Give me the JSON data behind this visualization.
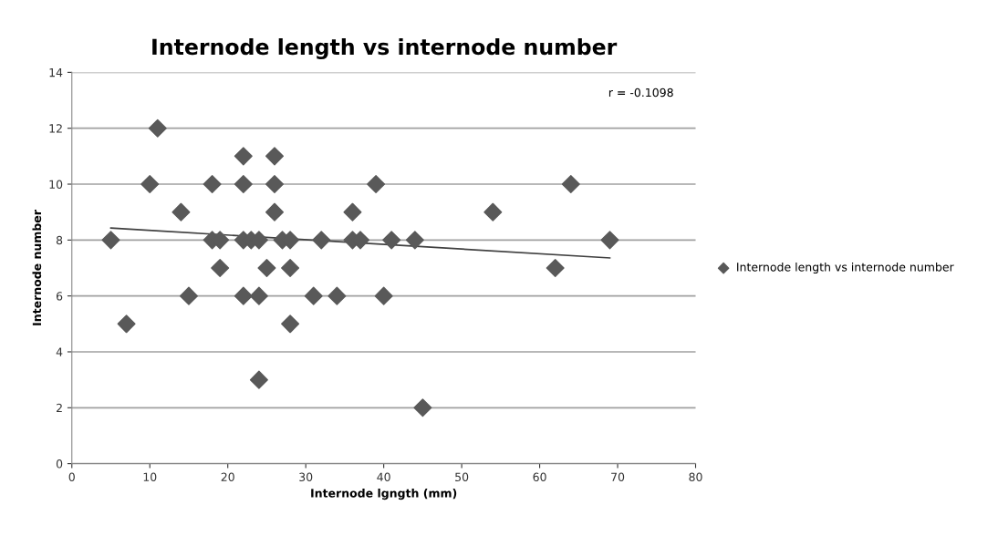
{
  "chart_data": {
    "type": "scatter",
    "title": "Internode length vs internode number",
    "xlabel": "Internode lgngth (mm)",
    "ylabel": "Internode number",
    "x": [
      5,
      7,
      10,
      11,
      14,
      15,
      18,
      18,
      19,
      19,
      22,
      22,
      22,
      22,
      23,
      24,
      24,
      24,
      25,
      26,
      26,
      26,
      27,
      28,
      28,
      28,
      31,
      32,
      34,
      36,
      36,
      37,
      39,
      40,
      41,
      44,
      45,
      54,
      62,
      64,
      69
    ],
    "series": [
      {
        "name": "Internode length vs internode number",
        "color": "#595959",
        "marker": "diamond",
        "values": [
          8,
          5,
          10,
          12,
          9,
          6,
          10,
          8,
          8,
          7,
          11,
          10,
          8,
          6,
          8,
          8,
          6,
          3,
          7,
          11,
          10,
          9,
          8,
          8,
          7,
          5,
          6,
          8,
          6,
          9,
          8,
          8,
          10,
          6,
          8,
          8,
          2,
          9,
          7,
          10,
          8
        ]
      },
      {
        "type": "line",
        "color": "#404040",
        "x": [
          5,
          69
        ],
        "values": [
          8.43,
          7.36
        ]
      }
    ],
    "xlim": [
      0,
      80
    ],
    "ylim": [
      0,
      14
    ],
    "xticks": [
      0,
      10,
      20,
      30,
      40,
      50,
      60,
      70,
      80
    ],
    "yticks": [
      0,
      2,
      4,
      6,
      8,
      10,
      12,
      14
    ],
    "grid": "y",
    "legend": "right",
    "annotations": [
      "r = -0.1098"
    ]
  }
}
